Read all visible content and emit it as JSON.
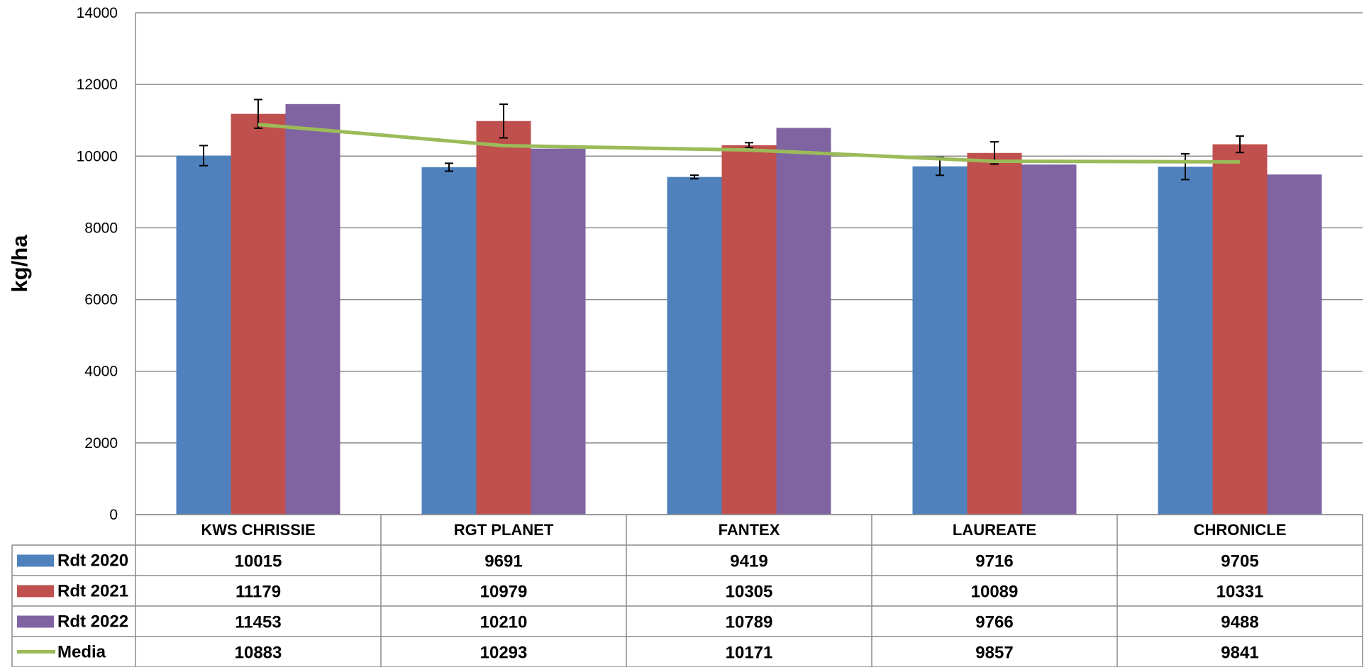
{
  "chart_data": {
    "type": "bar",
    "ylabel": "kg/ha",
    "ylim": [
      0,
      14000
    ],
    "yticks": [
      0,
      2000,
      4000,
      6000,
      8000,
      10000,
      12000,
      14000
    ],
    "grid": true,
    "categories": [
      "KWS CHRISSIE",
      "RGT PLANET",
      "FANTEX",
      "LAUREATE",
      "CHRONICLE"
    ],
    "series": [
      {
        "name": "Rdt 2020",
        "kind": "bar",
        "color": "#4F81BD",
        "values": [
          10015,
          9691,
          9419,
          9716,
          9705
        ],
        "error": [
          280,
          110,
          50,
          250,
          360
        ]
      },
      {
        "name": "Rdt 2021",
        "kind": "bar",
        "color": "#C0504D",
        "values": [
          11179,
          10979,
          10305,
          10089,
          10331
        ],
        "error": [
          400,
          470,
          70,
          310,
          230
        ]
      },
      {
        "name": "Rdt 2022",
        "kind": "bar",
        "color": "#8064A2",
        "values": [
          11453,
          10210,
          10789,
          9766,
          9488
        ]
      },
      {
        "name": "Media",
        "kind": "line",
        "color": "#9BBB59",
        "values": [
          10883,
          10293,
          10171,
          9857,
          9841
        ]
      }
    ],
    "data_table": true
  }
}
